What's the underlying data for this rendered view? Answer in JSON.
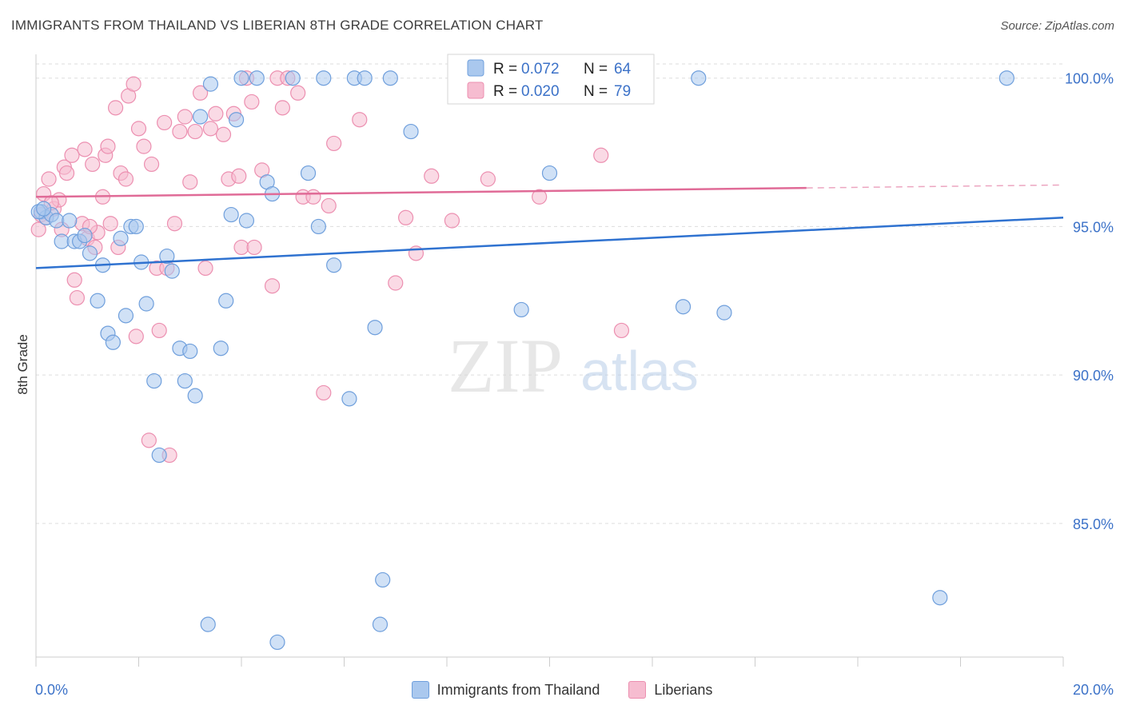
{
  "title": "IMMIGRANTS FROM THAILAND VS LIBERIAN 8TH GRADE CORRELATION CHART",
  "source": "Source: ZipAtlas.com",
  "watermark": {
    "zip": "ZIP",
    "atlas": "atlas"
  },
  "legend_box": {
    "rows": [
      {
        "r_label": "R = ",
        "r_value": "0.072",
        "n_label": "N = ",
        "n_value": "64"
      },
      {
        "r_label": "R = ",
        "r_value": "0.020",
        "n_label": "N = ",
        "n_value": "79"
      }
    ]
  },
  "colors": {
    "blue_fill": "#aac8ee",
    "blue_stroke": "#6f9fdc",
    "blue_line": "#2f72d0",
    "pink_fill": "#f6bcd0",
    "pink_stroke": "#ec8fb0",
    "pink_line": "#e06b97",
    "value_text": "#3c72c8",
    "grid": "#dddddd"
  },
  "chart_data": {
    "type": "scatter",
    "title": "IMMIGRANTS FROM THAILAND VS LIBERIAN 8TH GRADE CORRELATION CHART",
    "xlabel": "",
    "ylabel": "8th Grade",
    "xlim": [
      0,
      20
    ],
    "ylim": [
      80.5,
      100.8
    ],
    "x_tick_labels": [
      "0.0%",
      "20.0%"
    ],
    "y_ticks": [
      85,
      90,
      95,
      100
    ],
    "y_tick_labels": [
      "85.0%",
      "90.0%",
      "95.0%",
      "100.0%"
    ],
    "grid": "horizontal dashed",
    "legend": "bottom-center",
    "series": [
      {
        "name": "Immigrants from Thailand",
        "color": "#aac8ee",
        "trend": {
          "x": [
            0,
            20
          ],
          "y": [
            93.6,
            95.3
          ]
        },
        "points": [
          [
            0.1,
            95.5
          ],
          [
            0.2,
            95.3
          ],
          [
            0.3,
            95.4
          ],
          [
            0.4,
            95.2
          ],
          [
            0.5,
            94.5
          ],
          [
            0.65,
            95.2
          ],
          [
            0.75,
            94.5
          ],
          [
            0.85,
            94.5
          ],
          [
            0.95,
            94.7
          ],
          [
            1.05,
            94.1
          ],
          [
            1.2,
            92.5
          ],
          [
            1.3,
            93.7
          ],
          [
            1.4,
            91.4
          ],
          [
            1.5,
            91.1
          ],
          [
            1.65,
            94.6
          ],
          [
            1.75,
            92.0
          ],
          [
            1.85,
            95.0
          ],
          [
            1.95,
            95.0
          ],
          [
            2.05,
            93.8
          ],
          [
            2.15,
            92.4
          ],
          [
            2.3,
            89.8
          ],
          [
            2.4,
            87.3
          ],
          [
            2.55,
            94.0
          ],
          [
            2.65,
            93.5
          ],
          [
            2.8,
            90.9
          ],
          [
            2.9,
            89.8
          ],
          [
            3.0,
            90.8
          ],
          [
            3.1,
            89.3
          ],
          [
            3.2,
            98.7
          ],
          [
            3.35,
            81.6
          ],
          [
            3.4,
            99.8
          ],
          [
            3.6,
            90.9
          ],
          [
            3.7,
            92.5
          ],
          [
            3.8,
            95.4
          ],
          [
            3.9,
            98.6
          ],
          [
            4.0,
            100.0
          ],
          [
            4.1,
            95.2
          ],
          [
            4.3,
            100.0
          ],
          [
            4.5,
            96.5
          ],
          [
            4.6,
            96.1
          ],
          [
            4.7,
            81.0
          ],
          [
            5.0,
            100.0
          ],
          [
            5.3,
            96.8
          ],
          [
            5.5,
            95.0
          ],
          [
            5.6,
            100.0
          ],
          [
            5.8,
            93.7
          ],
          [
            6.1,
            89.2
          ],
          [
            6.2,
            100.0
          ],
          [
            6.4,
            100.0
          ],
          [
            6.6,
            91.6
          ],
          [
            6.7,
            81.6
          ],
          [
            6.75,
            83.1
          ],
          [
            6.9,
            100.0
          ],
          [
            7.3,
            98.2
          ],
          [
            9.45,
            92.2
          ],
          [
            10.0,
            96.8
          ],
          [
            11.3,
            100.0
          ],
          [
            12.6,
            92.3
          ],
          [
            12.9,
            100.0
          ],
          [
            13.4,
            92.1
          ],
          [
            17.6,
            82.5
          ],
          [
            18.9,
            100.0
          ],
          [
            0.05,
            95.5
          ],
          [
            0.15,
            95.6
          ]
        ]
      },
      {
        "name": "Liberians",
        "color": "#f6bcd0",
        "trend": {
          "x": [
            0,
            15
          ],
          "y": [
            96.0,
            96.3
          ]
        },
        "trend_dashed": {
          "x": [
            15,
            20
          ],
          "y": [
            96.3,
            96.4
          ]
        },
        "points": [
          [
            0.05,
            94.9
          ],
          [
            0.1,
            95.4
          ],
          [
            0.15,
            96.1
          ],
          [
            0.25,
            96.6
          ],
          [
            0.35,
            95.6
          ],
          [
            0.45,
            95.9
          ],
          [
            0.5,
            94.9
          ],
          [
            0.55,
            97.0
          ],
          [
            0.6,
            96.8
          ],
          [
            0.7,
            97.4
          ],
          [
            0.75,
            93.2
          ],
          [
            0.8,
            92.6
          ],
          [
            0.9,
            95.1
          ],
          [
            0.95,
            97.6
          ],
          [
            1.0,
            94.6
          ],
          [
            1.1,
            97.1
          ],
          [
            1.15,
            94.3
          ],
          [
            1.2,
            94.8
          ],
          [
            1.3,
            96.0
          ],
          [
            1.35,
            97.4
          ],
          [
            1.4,
            97.7
          ],
          [
            1.45,
            95.1
          ],
          [
            1.55,
            99.0
          ],
          [
            1.6,
            94.3
          ],
          [
            1.65,
            96.8
          ],
          [
            1.75,
            96.6
          ],
          [
            1.8,
            99.4
          ],
          [
            1.9,
            99.8
          ],
          [
            1.95,
            91.3
          ],
          [
            2.0,
            98.3
          ],
          [
            2.1,
            97.7
          ],
          [
            2.2,
            87.8
          ],
          [
            2.25,
            97.1
          ],
          [
            2.35,
            93.6
          ],
          [
            2.4,
            91.5
          ],
          [
            2.5,
            98.5
          ],
          [
            2.55,
            93.6
          ],
          [
            2.6,
            87.3
          ],
          [
            2.7,
            95.1
          ],
          [
            2.8,
            98.2
          ],
          [
            2.9,
            98.7
          ],
          [
            3.0,
            96.5
          ],
          [
            3.1,
            98.2
          ],
          [
            3.2,
            99.5
          ],
          [
            3.3,
            93.6
          ],
          [
            3.4,
            98.3
          ],
          [
            3.5,
            98.8
          ],
          [
            3.65,
            98.1
          ],
          [
            3.75,
            96.6
          ],
          [
            3.85,
            98.8
          ],
          [
            3.95,
            96.7
          ],
          [
            4.0,
            94.3
          ],
          [
            4.1,
            100.0
          ],
          [
            4.2,
            99.2
          ],
          [
            4.25,
            94.3
          ],
          [
            4.4,
            96.9
          ],
          [
            4.6,
            93.0
          ],
          [
            4.7,
            100.0
          ],
          [
            4.8,
            99.0
          ],
          [
            4.9,
            100.0
          ],
          [
            5.1,
            99.5
          ],
          [
            5.2,
            96.0
          ],
          [
            5.4,
            96.0
          ],
          [
            5.6,
            89.4
          ],
          [
            5.7,
            95.7
          ],
          [
            5.8,
            97.8
          ],
          [
            6.3,
            98.6
          ],
          [
            7.0,
            93.1
          ],
          [
            7.2,
            95.3
          ],
          [
            7.4,
            94.1
          ],
          [
            7.7,
            96.7
          ],
          [
            8.1,
            95.2
          ],
          [
            8.8,
            96.6
          ],
          [
            9.8,
            96.0
          ],
          [
            11.0,
            97.4
          ],
          [
            11.4,
            91.5
          ],
          [
            0.2,
            95.3
          ],
          [
            0.3,
            95.8
          ],
          [
            1.05,
            95.0
          ]
        ]
      }
    ]
  },
  "bottom_legend": [
    {
      "label": "Immigrants from Thailand",
      "color": "#aac8ee",
      "stroke": "#6f9fdc"
    },
    {
      "label": "Liberians",
      "color": "#f6bcd0",
      "stroke": "#ec8fb0"
    }
  ]
}
